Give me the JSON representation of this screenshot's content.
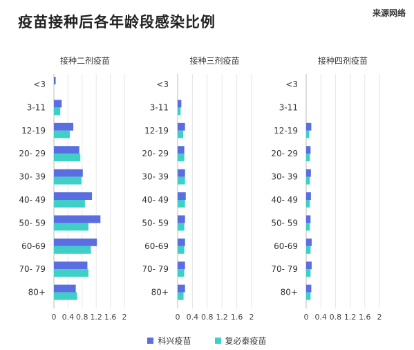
{
  "title": "疫苗接种后各年龄段感染比例",
  "source": "来源网络",
  "colors": {
    "kexing": "#5b6ee1",
    "fubitai": "#3ecfc7"
  },
  "legend": [
    {
      "name": "科兴疫苗",
      "color": "#5b6ee1"
    },
    {
      "name": "复必泰疫苗",
      "color": "#3ecfc7"
    }
  ],
  "chart_data": [
    {
      "type": "bar",
      "orientation": "horizontal",
      "title": "接种二剂疫苗",
      "categories": [
        "<3",
        "3-11",
        "12-19",
        "20- 29",
        "30- 39",
        "40- 49",
        "50- 59",
        "60-69",
        "70- 79",
        "80+"
      ],
      "xlim": [
        0,
        2
      ],
      "xticks": [
        "0",
        "0.4",
        "0.8",
        "1.2",
        "1.6",
        "2"
      ],
      "series": [
        {
          "name": "科兴疫苗",
          "values": [
            0.05,
            0.22,
            0.55,
            0.72,
            0.82,
            1.08,
            1.32,
            1.22,
            0.95,
            0.62
          ]
        },
        {
          "name": "复必泰疫苗",
          "values": [
            0,
            0.18,
            0.45,
            0.75,
            0.78,
            0.88,
            0.98,
            1.05,
            0.98,
            0.66
          ]
        }
      ]
    },
    {
      "type": "bar",
      "orientation": "horizontal",
      "title": "接种三剂疫苗",
      "categories": [
        "<3",
        "3-11",
        "12-19",
        "20- 29",
        "30- 39",
        "40- 49",
        "50- 59",
        "60-69",
        "70- 79",
        "80+"
      ],
      "xlim": [
        0,
        2
      ],
      "xticks": [
        "0",
        "0.4",
        "0.8",
        "1.2",
        "1.6",
        "2"
      ],
      "series": [
        {
          "name": "科兴疫苗",
          "values": [
            0,
            0.1,
            0.2,
            0.18,
            0.2,
            0.22,
            0.2,
            0.2,
            0.2,
            0.2
          ]
        },
        {
          "name": "复必泰疫苗",
          "values": [
            0,
            0.08,
            0.15,
            0.18,
            0.2,
            0.2,
            0.18,
            0.18,
            0.18,
            0.16
          ]
        }
      ]
    },
    {
      "type": "bar",
      "orientation": "horizontal",
      "title": "接种四剂疫苗",
      "categories": [
        "<3",
        "3-11",
        "12-19",
        "20- 29",
        "30- 39",
        "40- 49",
        "50- 59",
        "60-69",
        "70- 79",
        "80+"
      ],
      "xlim": [
        0,
        2
      ],
      "xticks": [
        "0",
        "0.4",
        "0.8",
        "1.2",
        "1.6",
        "2"
      ],
      "series": [
        {
          "name": "科兴疫苗",
          "values": [
            0,
            0,
            0.14,
            0.12,
            0.13,
            0.13,
            0.12,
            0.15,
            0.15,
            0.14
          ]
        },
        {
          "name": "复必泰疫苗",
          "values": [
            0,
            0,
            0.08,
            0.1,
            0.1,
            0.1,
            0.1,
            0.12,
            0.12,
            0.12
          ]
        }
      ]
    }
  ]
}
